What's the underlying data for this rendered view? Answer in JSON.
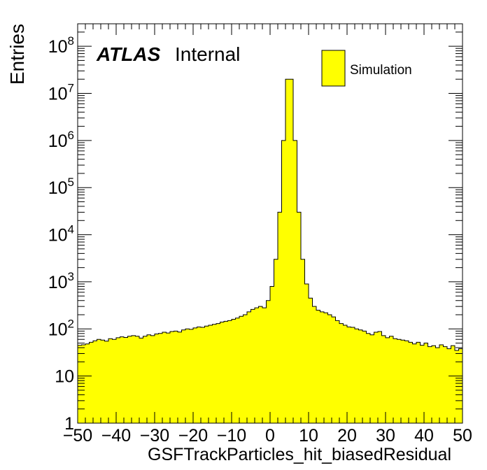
{
  "chart_data": {
    "type": "bar",
    "style": "histogram",
    "xlabel": "GSFTrackParticles_hit_biasedResidual",
    "ylabel": "Entries",
    "xlim": [
      -50,
      50
    ],
    "ylim": [
      1,
      300000000
    ],
    "log_y": true,
    "grid": false,
    "legend_position": "top-right",
    "fill_color": "#ffff00",
    "line_color": "#000000",
    "atlas_label": "ATLAS",
    "atlas_sublabel": "Internal",
    "x_ticks": [
      -50,
      -40,
      -30,
      -20,
      -10,
      0,
      10,
      20,
      30,
      40,
      50
    ],
    "x_tick_labels": [
      "−50",
      "−40",
      "−30",
      "−20",
      "−10",
      "0",
      "10",
      "20",
      "30",
      "40",
      "50"
    ],
    "y_ticks": [
      {
        "value": 1,
        "base": "1",
        "exp": ""
      },
      {
        "value": 10,
        "base": "10",
        "exp": ""
      },
      {
        "value": 100,
        "base": "10",
        "exp": "2"
      },
      {
        "value": 1000,
        "base": "10",
        "exp": "3"
      },
      {
        "value": 10000,
        "base": "10",
        "exp": "4"
      },
      {
        "value": 100000,
        "base": "10",
        "exp": "5"
      },
      {
        "value": 1000000,
        "base": "10",
        "exp": "6"
      },
      {
        "value": 10000000,
        "base": "10",
        "exp": "7"
      },
      {
        "value": 100000000,
        "base": "10",
        "exp": "8"
      }
    ],
    "bin_width": 1,
    "series": [
      {
        "name": "Simulation",
        "x_bin_edges_start": -50,
        "values": [
          45,
          46,
          48,
          52,
          56,
          60,
          58,
          55,
          62,
          60,
          65,
          68,
          66,
          70,
          72,
          70,
          64,
          70,
          75,
          72,
          78,
          80,
          85,
          82,
          88,
          90,
          86,
          95,
          100,
          98,
          105,
          110,
          108,
          115,
          120,
          125,
          130,
          140,
          145,
          150,
          160,
          170,
          185,
          200,
          230,
          260,
          280,
          300,
          280,
          400,
          800,
          3000,
          30000,
          1000000,
          20000000,
          20000000,
          1000000,
          30000,
          3000,
          900,
          450,
          300,
          250,
          230,
          220,
          200,
          180,
          150,
          130,
          120,
          110,
          108,
          100,
          95,
          90,
          80,
          75,
          85,
          88,
          72,
          65,
          70,
          62,
          60,
          58,
          56,
          52,
          48,
          52,
          45,
          50,
          42,
          44,
          40,
          46,
          42,
          38,
          44,
          35,
          38
        ]
      }
    ]
  }
}
